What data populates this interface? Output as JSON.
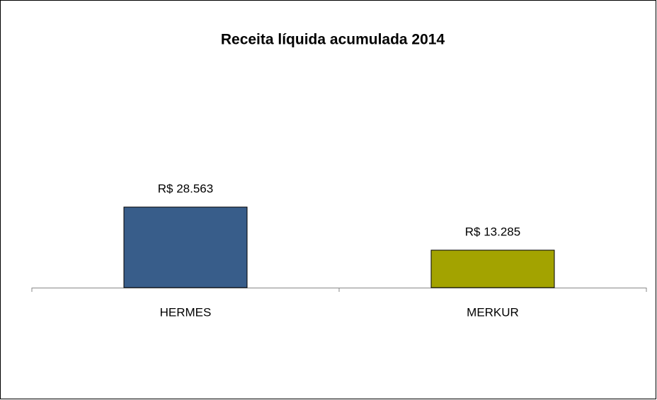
{
  "chart_data": {
    "type": "bar",
    "title": "Receita líquida acumulada 2014",
    "categories": [
      "HERMES",
      "MERKUR"
    ],
    "values": [
      28563,
      13285
    ],
    "value_labels": [
      "R$ 28.563",
      "R$ 13.285"
    ],
    "colors": [
      "#385d8a",
      "#a3a300"
    ]
  }
}
